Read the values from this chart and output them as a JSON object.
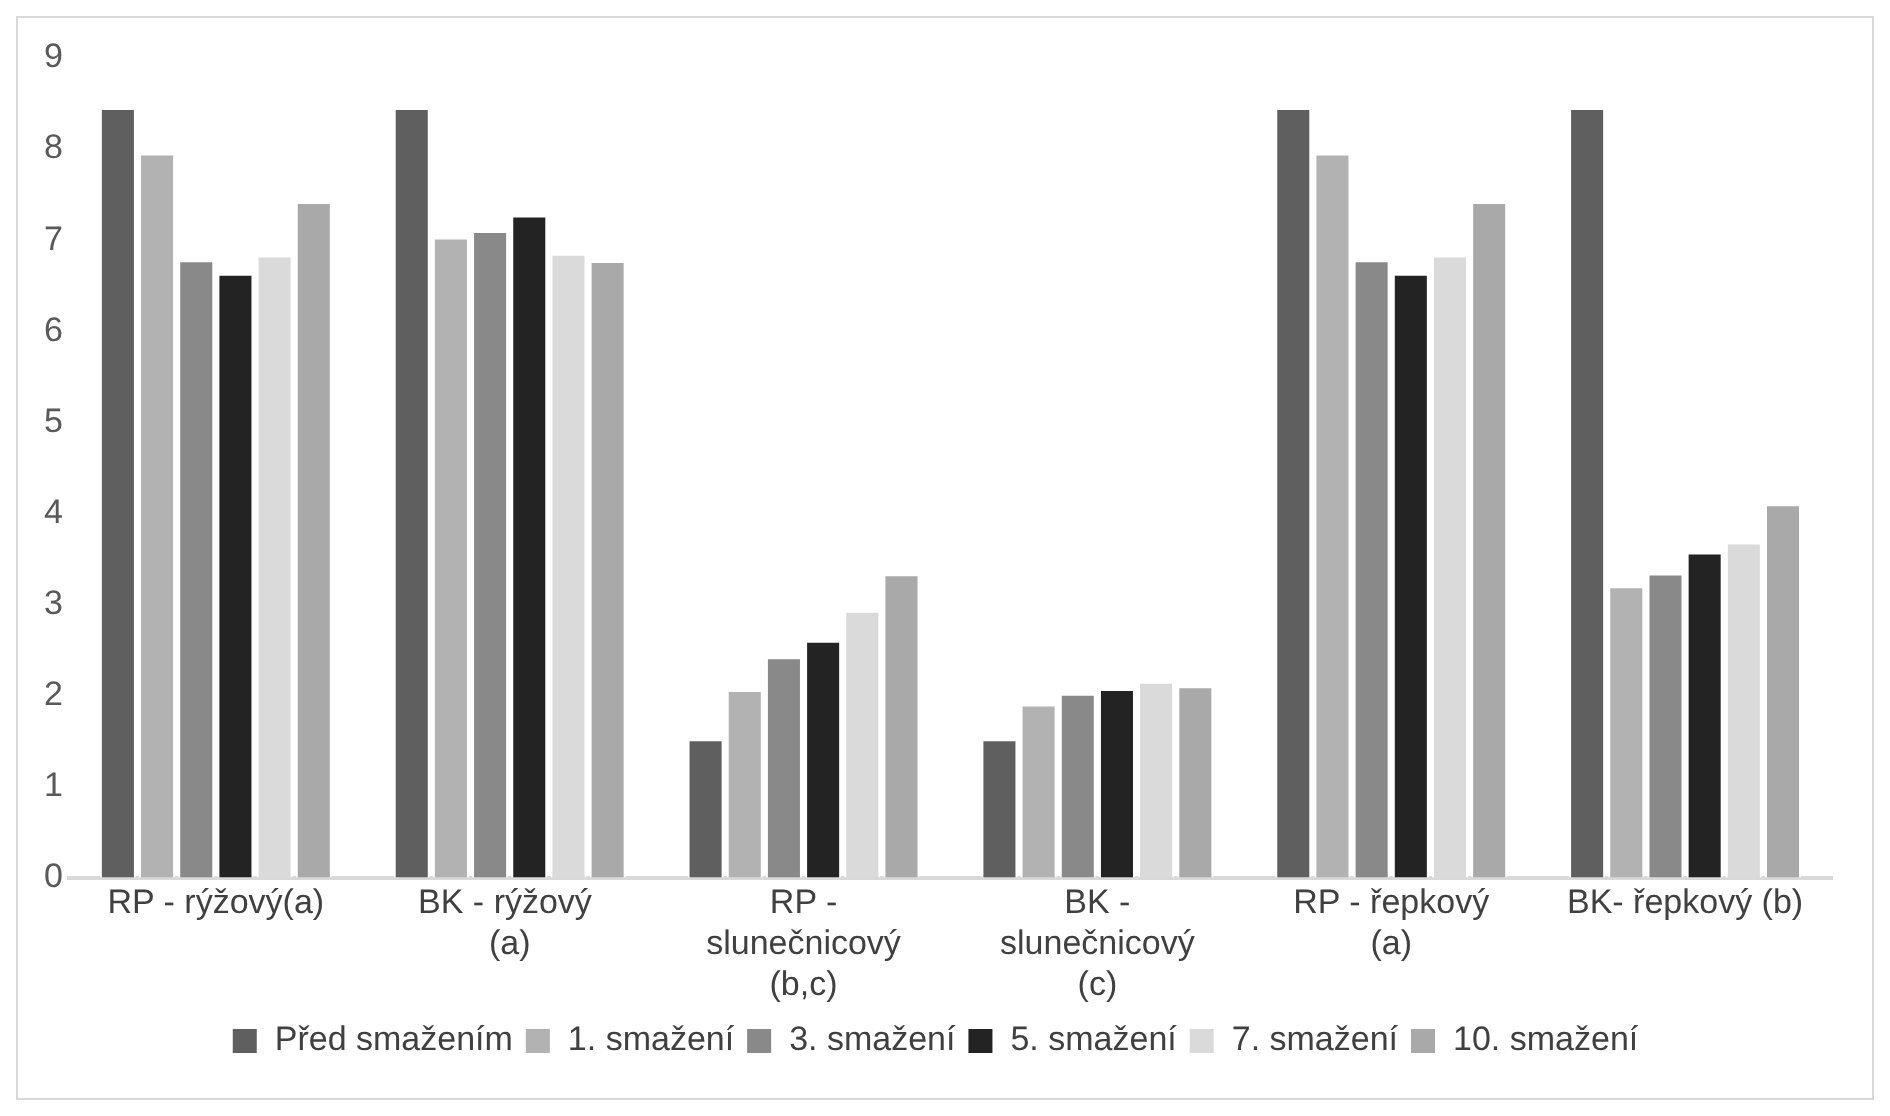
{
  "chart_data": {
    "type": "bar",
    "categories": [
      "RP - rýžový(a)",
      "BK - rýžový  (a)",
      "RP - slunečnicový (b,c)",
      "BK - slunečnicový (c)",
      "RP - řepkový (a)",
      "BK- řepkový (b)"
    ],
    "series": [
      {
        "name": "Před smažením",
        "color": "#5f5f5f",
        "values": [
          8.45,
          8.45,
          1.52,
          1.52,
          8.45,
          8.45
        ]
      },
      {
        "name": "1. smažení",
        "color": "#b2b2b2",
        "values": [
          7.95,
          7.03,
          2.06,
          1.9,
          7.95,
          3.2
        ]
      },
      {
        "name": "3. smažení",
        "color": "#898989",
        "values": [
          6.78,
          7.1,
          2.42,
          2.02,
          6.78,
          3.34
        ]
      },
      {
        "name": "5. smažení",
        "color": "#232323",
        "values": [
          6.63,
          7.27,
          2.6,
          2.07,
          6.63,
          3.57
        ]
      },
      {
        "name": "7. smažení",
        "color": "#dadada",
        "values": [
          6.83,
          6.85,
          2.93,
          2.15,
          6.83,
          3.68
        ]
      },
      {
        "name": "10. smažení",
        "color": "#a9a9a9",
        "values": [
          7.42,
          6.77,
          3.33,
          2.1,
          7.42,
          4.1
        ]
      }
    ],
    "ylim": [
      0,
      9
    ],
    "yticks": [
      0,
      1,
      2,
      3,
      4,
      5,
      6,
      7,
      8,
      9
    ],
    "grid": false,
    "legend": "bottom"
  }
}
